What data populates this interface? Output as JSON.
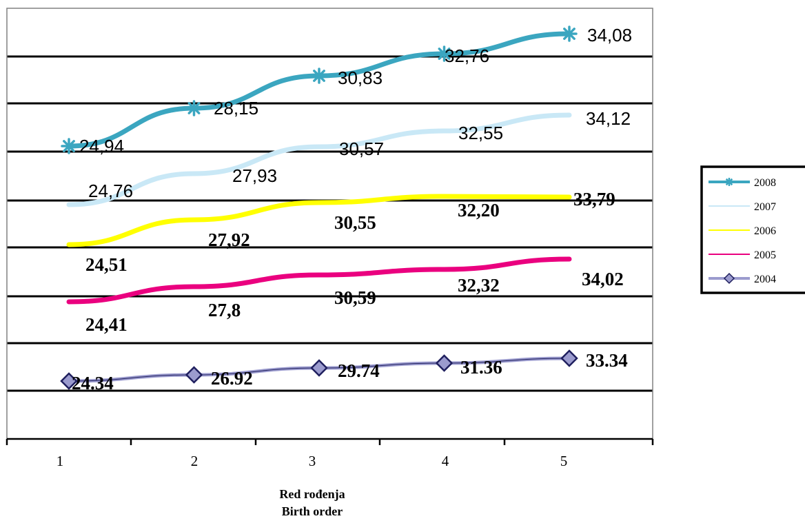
{
  "chart_data": {
    "type": "line",
    "categories": [
      "1",
      "2",
      "3",
      "4",
      "5"
    ],
    "xlabel_lines": [
      "Red rođenja",
      "Birth order"
    ],
    "ylim": [
      22,
      35
    ],
    "grid": true,
    "legend_position": "right",
    "series": [
      {
        "name": "2008",
        "color": "#3ba6c0",
        "marker": "asterisk",
        "values": [
          24.94,
          28.15,
          30.83,
          32.76,
          34.08
        ],
        "labels": [
          "24,94",
          "28,15",
          "30,83",
          "32,76",
          "34,08"
        ],
        "label_style": "sans"
      },
      {
        "name": "2007",
        "color": "#c9e8f6",
        "marker": "none",
        "values": [
          24.76,
          27.93,
          30.57,
          32.55,
          34.12
        ],
        "labels": [
          "24,76",
          "27,93",
          "30,57",
          "32,55",
          "34,12"
        ],
        "label_style": "sans"
      },
      {
        "name": "2006",
        "color": "#ffff00",
        "marker": "none",
        "values": [
          24.51,
          27.92,
          30.55,
          32.2,
          33.79
        ],
        "labels": [
          "24,51",
          "27,92",
          "30,55",
          "32,20",
          "33,79"
        ],
        "label_style": "serif-bold"
      },
      {
        "name": "2005",
        "color": "#ea007f",
        "marker": "none",
        "values": [
          24.41,
          27.8,
          30.59,
          32.32,
          34.02
        ],
        "labels": [
          "24,41",
          "27,8",
          "30,59",
          "32,32",
          "34,02"
        ],
        "label_style": "serif-bold"
      },
      {
        "name": "2004",
        "color": "#9b9bce",
        "marker": "diamond",
        "values": [
          24.34,
          26.92,
          29.74,
          31.36,
          33.34
        ],
        "labels": [
          "24.34",
          "26.92",
          "29.74",
          "31.36",
          "33.34"
        ],
        "label_style": "serif-bold"
      }
    ]
  }
}
